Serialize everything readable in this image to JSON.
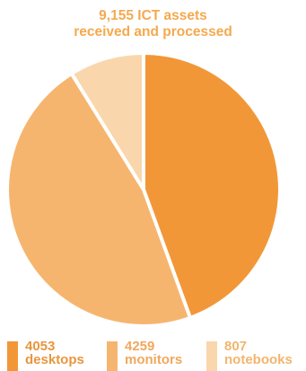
{
  "title": {
    "line1": "9,155 ICT assets",
    "line2": "received and processed"
  },
  "colors": {
    "title": "#f5a94e",
    "desktops": "#f29738",
    "monitors": "#f6b56f",
    "notebooks": "#fad6ad",
    "label_text": "#e8963e",
    "slice_border": "#ffffff"
  },
  "chart_data": {
    "type": "pie",
    "title": "9,155 ICT assets received and processed",
    "slices": [
      {
        "label": "desktops",
        "value": 4053
      },
      {
        "label": "monitors",
        "value": 4259
      },
      {
        "label": "notebooks",
        "value": 807
      }
    ],
    "start": "top",
    "direction": "clockwise",
    "legend": "bottom"
  },
  "legend": [
    {
      "value": "4053",
      "label": "desktops"
    },
    {
      "value": "4259",
      "label": "monitors"
    },
    {
      "value": "807",
      "label": "notebooks"
    }
  ]
}
